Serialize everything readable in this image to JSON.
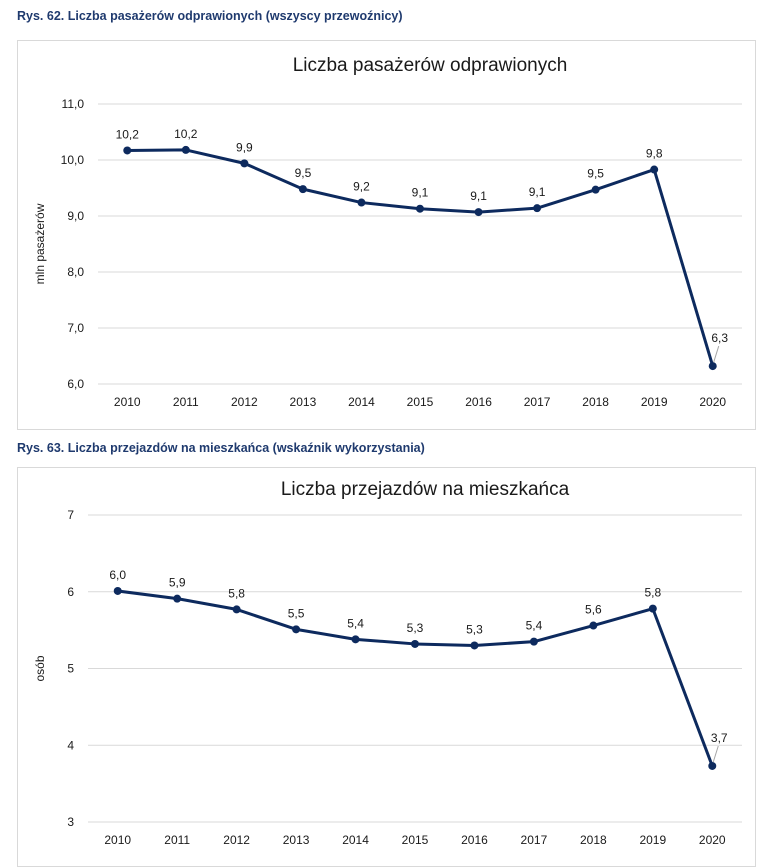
{
  "captions": [
    "Rys. 62. Liczba pasażerów odprawionych (wszyscy przewoźnicy)",
    "Rys. 63. Liczba przejazdów na mieszkańca (wskaźnik wykorzystania)"
  ],
  "colors": {
    "line": "#0d2a5e",
    "grid": "#d9d9d9",
    "caption": "#1f3a6e",
    "leader": "#a6a6a6"
  },
  "chart_data": [
    {
      "type": "line",
      "title": "Liczba pasażerów odprawionych",
      "xlabel": "",
      "ylabel": "mln pasażerów",
      "categories": [
        "2010",
        "2011",
        "2012",
        "2013",
        "2014",
        "2015",
        "2016",
        "2017",
        "2018",
        "2019",
        "2020"
      ],
      "values": [
        10.17,
        10.18,
        9.94,
        9.48,
        9.24,
        9.13,
        9.07,
        9.14,
        9.47,
        9.83,
        6.32
      ],
      "data_labels": [
        "10,2",
        "10,2",
        "9,9",
        "9,5",
        "9,2",
        "9,1",
        "9,1",
        "9,1",
        "9,5",
        "9,8",
        "6,3"
      ],
      "ylim": [
        6.0,
        11.0
      ],
      "yticks": [
        6.0,
        7.0,
        8.0,
        9.0,
        10.0,
        11.0
      ],
      "ytick_labels": [
        "6,0",
        "7,0",
        "8,0",
        "9,0",
        "10,0",
        "11,0"
      ],
      "grid": true,
      "legend": "none"
    },
    {
      "type": "line",
      "title": "Liczba przejazdów na mieszkańca",
      "xlabel": "",
      "ylabel": "osób",
      "categories": [
        "2010",
        "2011",
        "2012",
        "2013",
        "2014",
        "2015",
        "2016",
        "2017",
        "2018",
        "2019",
        "2020"
      ],
      "values": [
        6.01,
        5.91,
        5.77,
        5.51,
        5.38,
        5.32,
        5.3,
        5.35,
        5.56,
        5.78,
        3.73
      ],
      "data_labels": [
        "6,0",
        "5,9",
        "5,8",
        "5,5",
        "5,4",
        "5,3",
        "5,3",
        "5,4",
        "5,6",
        "5,8",
        "3,7"
      ],
      "ylim": [
        3,
        7
      ],
      "yticks": [
        3,
        4,
        5,
        6,
        7
      ],
      "ytick_labels": [
        "3",
        "4",
        "5",
        "6",
        "7"
      ],
      "grid": true,
      "legend": "none"
    }
  ]
}
